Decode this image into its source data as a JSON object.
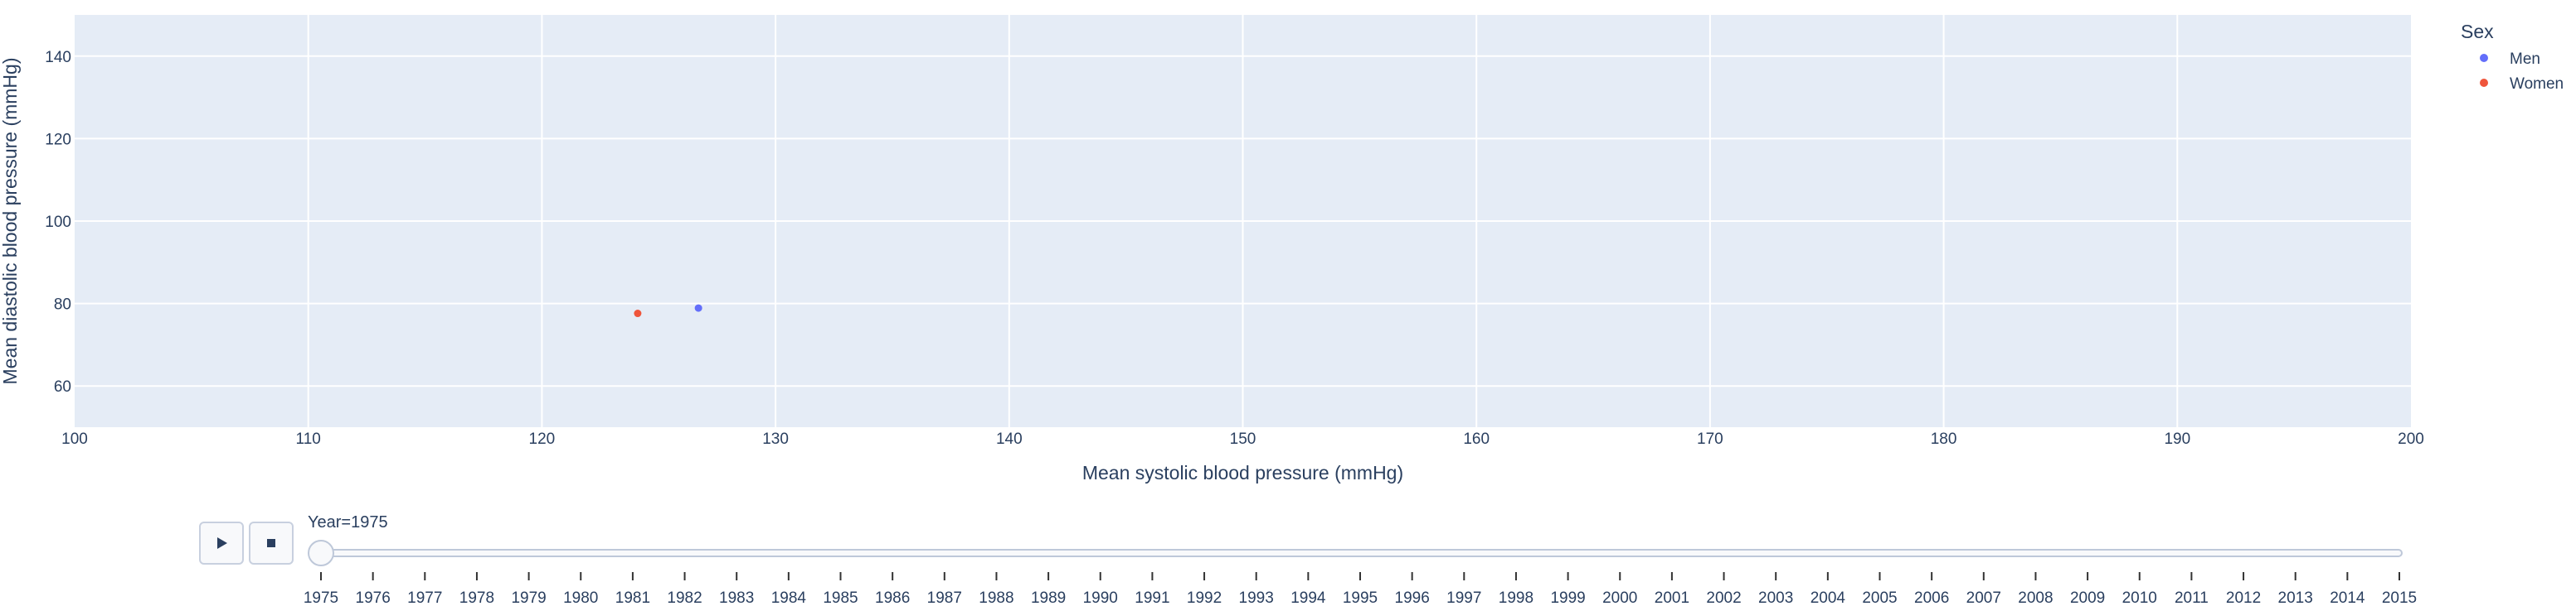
{
  "chart_data": {
    "type": "scatter",
    "xlabel": "Mean systolic blood pressure (mmHg)",
    "ylabel": "Mean diastolic blood pressure (mmHg)",
    "xlim": [
      100,
      200
    ],
    "ylim": [
      50,
      150
    ],
    "x_ticks": [
      100,
      110,
      120,
      130,
      140,
      150,
      160,
      170,
      180,
      190,
      200
    ],
    "y_ticks": [
      60,
      80,
      100,
      120,
      140
    ],
    "grid": true,
    "legend": {
      "title": "Sex",
      "placement": "top-right",
      "entries": [
        "Men",
        "Women"
      ]
    },
    "series": [
      {
        "name": "Men",
        "color": "#636efa",
        "points": [
          {
            "x": 126.7,
            "y": 78.9
          }
        ]
      },
      {
        "name": "Women",
        "color": "#ef553b",
        "points": [
          {
            "x": 124.1,
            "y": 77.6
          }
        ]
      }
    ],
    "slider": {
      "label": "Year=1975",
      "current": "1975",
      "years": [
        "1975",
        "1976",
        "1977",
        "1978",
        "1979",
        "1980",
        "1981",
        "1982",
        "1983",
        "1984",
        "1985",
        "1986",
        "1987",
        "1988",
        "1989",
        "1990",
        "1991",
        "1992",
        "1993",
        "1994",
        "1995",
        "1996",
        "1997",
        "1998",
        "1999",
        "2000",
        "2001",
        "2002",
        "2003",
        "2004",
        "2005",
        "2006",
        "2007",
        "2008",
        "2009",
        "2010",
        "2011",
        "2012",
        "2013",
        "2014",
        "2015"
      ]
    },
    "controls": {
      "play_icon": "play-icon",
      "stop_icon": "stop-icon"
    }
  }
}
